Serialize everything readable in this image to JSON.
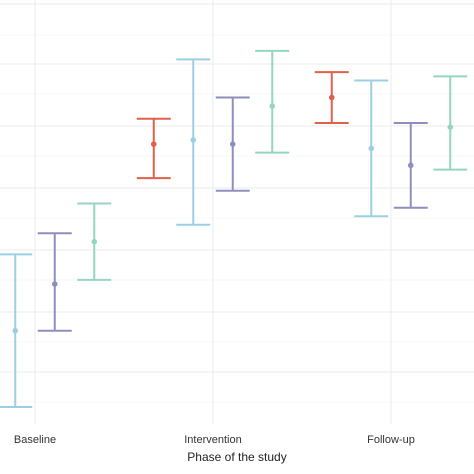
{
  "chart_data": {
    "type": "errorbar",
    "xlabel": "Phase of the study",
    "categories": [
      "Baseline",
      "Intervention",
      "Follow-up"
    ],
    "y_range": [
      0,
      100
    ],
    "grid": true,
    "legend": "none",
    "series": [
      {
        "color": "#e0604a",
        "points": [
          {
            "category": "Intervention",
            "mean": 66,
            "lower": 58,
            "upper": 72
          },
          {
            "category": "Follow-up",
            "mean": 77,
            "lower": 71,
            "upper": 83
          }
        ]
      },
      {
        "color": "#9dcfe2",
        "points": [
          {
            "category": "Baseline",
            "mean": 22,
            "lower": 4,
            "upper": 40
          },
          {
            "category": "Intervention",
            "mean": 67,
            "lower": 47,
            "upper": 86
          },
          {
            "category": "Follow-up",
            "mean": 65,
            "lower": 49,
            "upper": 81
          }
        ]
      },
      {
        "color": "#8e8fbf",
        "points": [
          {
            "category": "Baseline",
            "mean": 33,
            "lower": 22,
            "upper": 45
          },
          {
            "category": "Intervention",
            "mean": 66,
            "lower": 55,
            "upper": 77
          },
          {
            "category": "Follow-up",
            "mean": 61,
            "lower": 51,
            "upper": 71
          }
        ]
      },
      {
        "color": "#94d6c3",
        "points": [
          {
            "category": "Baseline",
            "mean": 43,
            "lower": 34,
            "upper": 52
          },
          {
            "category": "Intervention",
            "mean": 75,
            "lower": 64,
            "upper": 88
          },
          {
            "category": "Follow-up",
            "mean": 70,
            "lower": 60,
            "upper": 82
          }
        ]
      }
    ]
  }
}
